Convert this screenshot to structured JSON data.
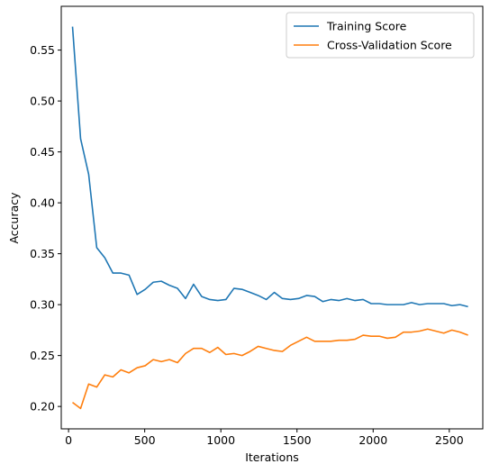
{
  "chart_data": {
    "type": "line",
    "title": "",
    "xlabel": "Iterations",
    "ylabel": "Accuracy",
    "xlim": [
      -48,
      2720
    ],
    "ylim": [
      0.178,
      0.593
    ],
    "x_ticks": [
      0,
      500,
      1000,
      1500,
      2000,
      2500
    ],
    "y_ticks": [
      0.2,
      0.25,
      0.3,
      0.35,
      0.4,
      0.45,
      0.5,
      0.55
    ],
    "x_tick_labels": [
      "0",
      "500",
      "1000",
      "1500",
      "2000",
      "2500"
    ],
    "y_tick_labels": [
      "0.20",
      "0.25",
      "0.30",
      "0.35",
      "0.40",
      "0.45",
      "0.50",
      "0.55"
    ],
    "grid": false,
    "legend_position": "top-right",
    "x": [
      26,
      79,
      132,
      185,
      238,
      291,
      344,
      397,
      450,
      503,
      556,
      609,
      662,
      715,
      768,
      821,
      874,
      927,
      980,
      1033,
      1086,
      1139,
      1192,
      1245,
      1298,
      1351,
      1404,
      1457,
      1510,
      1563,
      1616,
      1669,
      1722,
      1775,
      1828,
      1881,
      1934,
      1987,
      2040,
      2093,
      2146,
      2199,
      2252,
      2305,
      2358,
      2411,
      2464,
      2517,
      2570,
      2623
    ],
    "series": [
      {
        "name": "Training Score",
        "color": "#1f77b4",
        "values": [
          0.573,
          0.463,
          0.428,
          0.356,
          0.346,
          0.331,
          0.331,
          0.329,
          0.31,
          0.315,
          0.322,
          0.323,
          0.319,
          0.316,
          0.306,
          0.32,
          0.308,
          0.305,
          0.304,
          0.305,
          0.316,
          0.315,
          0.312,
          0.309,
          0.305,
          0.312,
          0.306,
          0.305,
          0.306,
          0.309,
          0.308,
          0.303,
          0.305,
          0.304,
          0.306,
          0.304,
          0.305,
          0.301,
          0.301,
          0.3,
          0.3,
          0.3,
          0.302,
          0.3,
          0.301,
          0.301,
          0.301,
          0.299,
          0.3,
          0.298
        ]
      },
      {
        "name": "Cross-Validation Score",
        "color": "#ff7f0e",
        "values": [
          0.204,
          0.198,
          0.222,
          0.219,
          0.231,
          0.229,
          0.236,
          0.233,
          0.238,
          0.24,
          0.246,
          0.244,
          0.246,
          0.243,
          0.252,
          0.257,
          0.257,
          0.253,
          0.258,
          0.251,
          0.252,
          0.25,
          0.254,
          0.259,
          0.257,
          0.255,
          0.254,
          0.26,
          0.264,
          0.268,
          0.264,
          0.264,
          0.264,
          0.265,
          0.265,
          0.266,
          0.27,
          0.269,
          0.269,
          0.267,
          0.268,
          0.273,
          0.273,
          0.274,
          0.276,
          0.274,
          0.272,
          0.275,
          0.273,
          0.27
        ]
      }
    ]
  }
}
